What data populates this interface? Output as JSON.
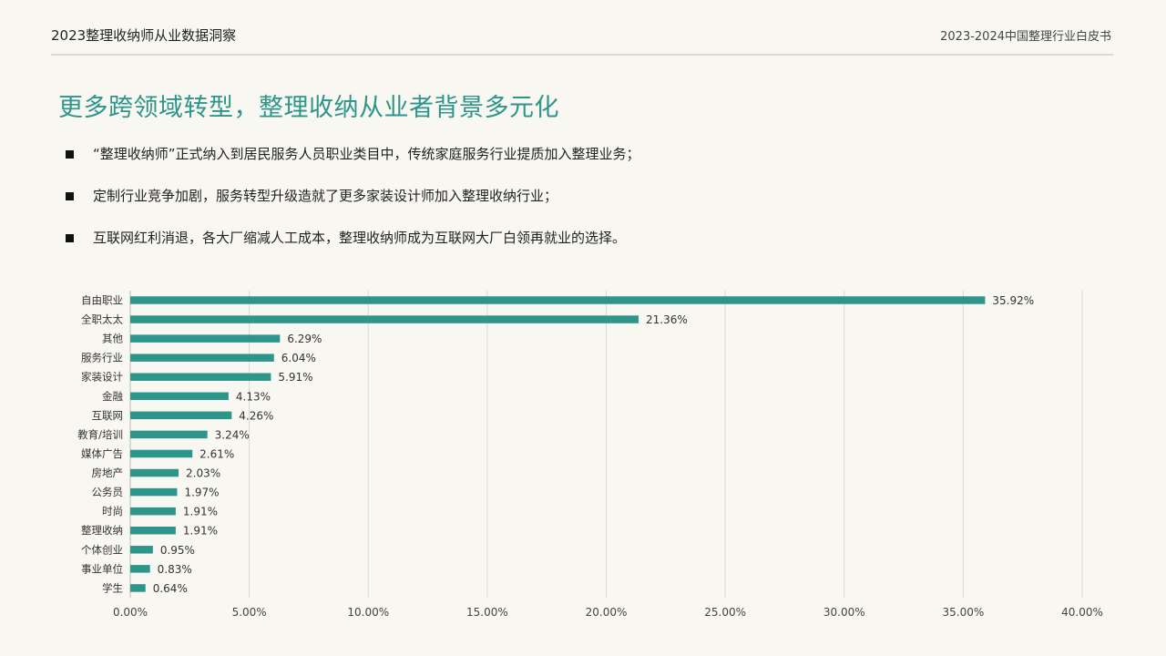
{
  "header": {
    "left_title": "2023整理收纳师从业数据洞察",
    "right_title": "2023-2024中国整理行业白皮书"
  },
  "slide": {
    "title": "更多跨领域转型，整理收纳从业者背景多元化",
    "bullets": [
      "“整理收纳师”正式纳入到居民服务人员职业类目中，传统家庭服务行业提质加入整理业务；",
      "定制行业竞争加剧，服务转型升级造就了更多家装设计师加入整理收纳行业；",
      "互联网红利消退，各大厂缩减人工成本，整理收纳师成为互联网大厂白领再就业的选择。"
    ]
  },
  "colors": {
    "accent": "#2e958a",
    "bar": "#2e958a",
    "grid": "#d9d9d4",
    "background": "#f8f7f1"
  },
  "chart_data": {
    "type": "bar",
    "orientation": "horizontal",
    "categories": [
      "自由职业",
      "全职太太",
      "其他",
      "服务行业",
      "家装设计",
      "金融",
      "互联网",
      "教育/培训",
      "媒体广告",
      "房地产",
      "公务员",
      "时尚",
      "整理收纳",
      "个体创业",
      "事业单位",
      "学生"
    ],
    "values": [
      35.92,
      21.36,
      6.29,
      6.04,
      5.91,
      4.13,
      4.26,
      3.24,
      2.61,
      2.03,
      1.97,
      1.91,
      1.91,
      0.95,
      0.83,
      0.64
    ],
    "value_labels": [
      "35.92%",
      "21.36%",
      "6.29%",
      "6.04%",
      "5.91%",
      "4.13%",
      "4.26%",
      "3.24%",
      "2.61%",
      "2.03%",
      "1.97%",
      "1.91%",
      "1.91%",
      "0.95%",
      "0.83%",
      "0.64%"
    ],
    "xlim": [
      0,
      40
    ],
    "xticks": [
      0,
      5,
      10,
      15,
      20,
      25,
      30,
      35,
      40
    ],
    "xtick_labels": [
      "0.00%",
      "5.00%",
      "10.00%",
      "15.00%",
      "20.00%",
      "25.00%",
      "30.00%",
      "35.00%",
      "40.00%"
    ],
    "grid": true,
    "legend": "none"
  }
}
